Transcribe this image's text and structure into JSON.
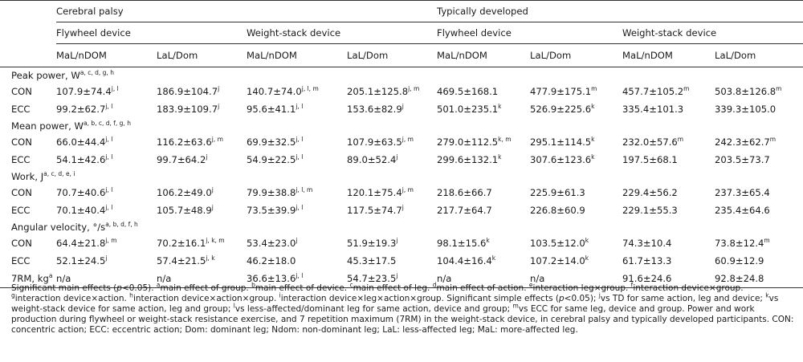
{
  "headers": {
    "group_cp": "Cerebral palsy",
    "group_td": "Typically developed",
    "dev_fly": "Flywheel device",
    "dev_ws": "Weight-stack device",
    "leg_mal": "MaL/nDOM",
    "leg_lal": "LaL/Dom"
  },
  "sections": [
    {
      "title": "Peak power, W",
      "title_sup": "a, c, d, g, h",
      "rows": [
        {
          "label": "CON",
          "cells": [
            {
              "v": "107.9±74.4",
              "s": "j, l"
            },
            {
              "v": "186.9±104.7",
              "s": "j"
            },
            {
              "v": "140.7±74.0",
              "s": "j, l, m"
            },
            {
              "v": "205.1±125.8",
              "s": "j, m"
            },
            {
              "v": "469.5±168.1",
              "s": ""
            },
            {
              "v": "477.9±175.1",
              "s": "m"
            },
            {
              "v": "457.7±105.2",
              "s": "m"
            },
            {
              "v": "503.8±126.8",
              "s": "m"
            }
          ]
        },
        {
          "label": "ECC",
          "cells": [
            {
              "v": "99.2±62.7",
              "s": "j, l"
            },
            {
              "v": "183.9±109.7",
              "s": "j"
            },
            {
              "v": "95.6±41.1",
              "s": "j, l"
            },
            {
              "v": "153.6±82.9",
              "s": "j"
            },
            {
              "v": "501.0±235.1",
              "s": "k"
            },
            {
              "v": "526.9±225.6",
              "s": "k"
            },
            {
              "v": "335.4±101.3",
              "s": ""
            },
            {
              "v": "339.3±105.0",
              "s": ""
            }
          ]
        }
      ]
    },
    {
      "title": "Mean power, W",
      "title_sup": "a, b, c, d, f, g, h",
      "rows": [
        {
          "label": "CON",
          "cells": [
            {
              "v": "66.0±44.4",
              "s": "j, l"
            },
            {
              "v": "116.2±63.6",
              "s": "j, m"
            },
            {
              "v": "69.9±32.5",
              "s": "j, l"
            },
            {
              "v": "107.9±63.5",
              "s": "j, m"
            },
            {
              "v": "279.0±112.5",
              "s": "k, m"
            },
            {
              "v": "295.1±114.5",
              "s": "k"
            },
            {
              "v": "232.0±57.6",
              "s": "m"
            },
            {
              "v": "242.3±62.7",
              "s": "m"
            }
          ]
        },
        {
          "label": "ECC",
          "cells": [
            {
              "v": "54.1±42.6",
              "s": "j, l"
            },
            {
              "v": "99.7±64.2",
              "s": "j"
            },
            {
              "v": "54.9±22.5",
              "s": "j, l"
            },
            {
              "v": "89.0±52.4",
              "s": "j"
            },
            {
              "v": "299.6±132.1",
              "s": "k"
            },
            {
              "v": "307.6±123.6",
              "s": "k"
            },
            {
              "v": "197.5±68.1",
              "s": ""
            },
            {
              "v": "203.5±73.7",
              "s": ""
            }
          ]
        }
      ]
    },
    {
      "title": "Work, J",
      "title_sup": "a, c, d, e, i",
      "rows": [
        {
          "label": "CON",
          "cells": [
            {
              "v": "70.7±40.6",
              "s": "j, l"
            },
            {
              "v": "106.2±49.0",
              "s": "j"
            },
            {
              "v": "79.9±38.8",
              "s": "j, l, m"
            },
            {
              "v": "120.1±75.4",
              "s": "j, m"
            },
            {
              "v": "218.6±66.7",
              "s": ""
            },
            {
              "v": "225.9±61.3",
              "s": ""
            },
            {
              "v": "229.4±56.2",
              "s": ""
            },
            {
              "v": "237.3±65.4",
              "s": ""
            }
          ]
        },
        {
          "label": "ECC",
          "cells": [
            {
              "v": "70.1±40.4",
              "s": "j, l"
            },
            {
              "v": "105.7±48.9",
              "s": "j"
            },
            {
              "v": "73.5±39.9",
              "s": "j, l"
            },
            {
              "v": "117.5±74.7",
              "s": "j"
            },
            {
              "v": "217.7±64.7",
              "s": ""
            },
            {
              "v": "226.8±60.9",
              "s": ""
            },
            {
              "v": "229.1±55.3",
              "s": ""
            },
            {
              "v": "235.4±64.6",
              "s": ""
            }
          ]
        }
      ]
    },
    {
      "title": "Angular velocity, °/s",
      "title_sup": "a, b, d, f, h",
      "rows": [
        {
          "label": "CON",
          "cells": [
            {
              "v": "64.4±21.8",
              "s": "j, m"
            },
            {
              "v": "70.2±16.1",
              "s": "j, k, m"
            },
            {
              "v": "53.4±23.0",
              "s": "j"
            },
            {
              "v": "51.9±19.3",
              "s": "j"
            },
            {
              "v": "98.1±15.6",
              "s": "k"
            },
            {
              "v": "103.5±12.0",
              "s": "k"
            },
            {
              "v": "74.3±10.4",
              "s": ""
            },
            {
              "v": "73.8±12.4",
              "s": "m"
            }
          ]
        },
        {
          "label": "ECC",
          "cells": [
            {
              "v": "52.1±24.5",
              "s": "j"
            },
            {
              "v": "57.4±21.5",
              "s": "j, k"
            },
            {
              "v": "46.2±18.0",
              "s": ""
            },
            {
              "v": "45.3±17.5",
              "s": ""
            },
            {
              "v": "104.4±16.4",
              "s": "k"
            },
            {
              "v": "107.2±14.0",
              "s": "k"
            },
            {
              "v": "61.7±13.3",
              "s": ""
            },
            {
              "v": "60.9±12.9",
              "s": ""
            }
          ]
        }
      ]
    }
  ],
  "rm_row": {
    "label": "7RM, kg",
    "label_sup": "a",
    "cells": [
      {
        "v": "n/a",
        "s": ""
      },
      {
        "v": "n/a",
        "s": ""
      },
      {
        "v": "36.6±13.6",
        "s": "j, l"
      },
      {
        "v": "54.7±23.5",
        "s": "j"
      },
      {
        "v": "n/a",
        "s": ""
      },
      {
        "v": "n/a",
        "s": ""
      },
      {
        "v": "91.6±24.6",
        "s": ""
      },
      {
        "v": "92.8±24.8",
        "s": ""
      }
    ]
  },
  "footnote": {
    "p1": "Significant main effects (",
    "p_italic": "p",
    "p2": "<0.05). ",
    "sa": "a",
    "ta": "main effect of group. ",
    "sb": "b",
    "tb": "main effect of device. ",
    "sc": "c",
    "tc": "main effect of leg. ",
    "sd": "d",
    "td": "main effect of action. ",
    "se": "e",
    "te": "interaction leg×group. ",
    "sf": "f",
    "tf": "interaction device×group. ",
    "sg": "g",
    "tg": "interaction device×action. ",
    "sh": "h",
    "th": "interaction device×action×group. ",
    "si": "i",
    "ti": "interaction device×leg×action×group. Significant simple effects (",
    "p_italic2": "p",
    "p3": "<0.05); ",
    "sj": "j",
    "tj": "vs TD for same action, leg and device; ",
    "sk": "k",
    "tk": "vs weight-stack device for same action, leg and group; ",
    "sl": "l",
    "tl": "vs less-affected/dominant leg for same action, device and group; ",
    "sm": "m",
    "tm": "vs ECC for same leg, device and group. Power and work production during flywheel or weight-stack resistance exercise, and 7 repetition maximum (7RM) in the weight-stack device, in cerebral palsy and typically developed participants. CON: concentric action; ECC: eccentric action; Dom: dominant leg; Ndom: non-dominant leg; LaL: less-affected leg; MaL: more-affected leg."
  }
}
